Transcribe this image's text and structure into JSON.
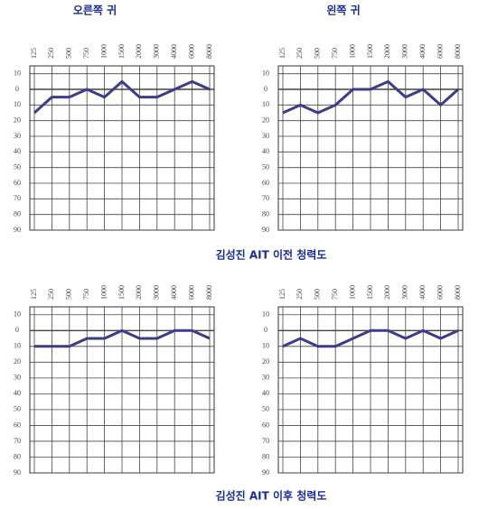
{
  "chart_data": [
    {
      "type": "line",
      "title": "오른쪽 귀",
      "categories": [
        "125",
        "250",
        "500",
        "750",
        "1000",
        "1500",
        "2000",
        "3000",
        "4000",
        "6000",
        "8000"
      ],
      "values": [
        15,
        5,
        5,
        0,
        5,
        -5,
        5,
        5,
        0,
        -5,
        0
      ],
      "color": "#3c3c8c",
      "ylim": [
        -15,
        90
      ],
      "yticks": [
        {
          "value": -10,
          "label": "10"
        },
        0,
        10,
        20,
        30,
        40,
        50,
        60,
        70,
        80,
        90
      ],
      "grid": true
    },
    {
      "type": "line",
      "title": "왼쪽 귀",
      "categories": [
        "125",
        "250",
        "500",
        "750",
        "1000",
        "1500",
        "2000",
        "3000",
        "4000",
        "6000",
        "8000"
      ],
      "values": [
        15,
        10,
        15,
        10,
        0,
        0,
        -5,
        5,
        0,
        10,
        0
      ],
      "color": "#3c3c8c",
      "ylim": [
        -15,
        90
      ],
      "yticks": [
        {
          "value": -10,
          "label": "10"
        },
        0,
        10,
        20,
        30,
        40,
        50,
        60,
        70,
        80,
        90
      ],
      "grid": true
    },
    {
      "type": "line",
      "categories": [
        "125",
        "250",
        "500",
        "750",
        "1000",
        "1500",
        "2000",
        "3000",
        "4000",
        "6000",
        "8000"
      ],
      "values": [
        10,
        10,
        10,
        5,
        5,
        0,
        5,
        5,
        0,
        0,
        5
      ],
      "color": "#3c3c8c",
      "ylim": [
        -15,
        90
      ],
      "yticks": [
        {
          "value": -10,
          "label": "10"
        },
        0,
        10,
        20,
        30,
        40,
        50,
        60,
        70,
        80,
        90
      ],
      "grid": true
    },
    {
      "type": "line",
      "categories": [
        "125",
        "250",
        "500",
        "750",
        "1000",
        "1500",
        "2000",
        "3000",
        "4000",
        "6000",
        "8000"
      ],
      "values": [
        10,
        5,
        10,
        10,
        5,
        0,
        0,
        5,
        0,
        5,
        0
      ],
      "color": "#3c3c8c",
      "ylim": [
        -15,
        90
      ],
      "yticks": [
        {
          "value": -10,
          "label": "10"
        },
        0,
        10,
        20,
        30,
        40,
        50,
        60,
        70,
        80,
        90
      ],
      "grid": true
    }
  ],
  "captions": [
    "김성진 AIT 이전 청력도",
    "김성진 AIT 이후 청력도"
  ]
}
